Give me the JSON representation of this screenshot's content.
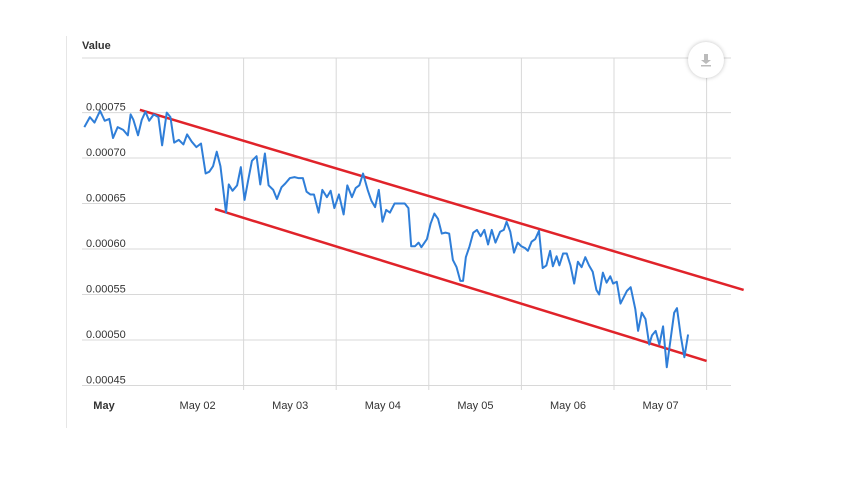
{
  "colors": {
    "series": "#2f7ed8",
    "channel": "#e0232a",
    "grid": "#d8d8d8",
    "axis_text": "#333333"
  },
  "icons": {
    "export": "download-icon"
  },
  "chart_data": {
    "type": "line",
    "ylabel": "Value",
    "ylim": [
      0.000445,
      0.00081
    ],
    "y_ticks": [
      "0.00045",
      "0.00050",
      "0.00055",
      "0.00060",
      "0.00065",
      "0.00070",
      "0.00075"
    ],
    "y_tick_values": [
      0.00045,
      0.0005,
      0.00055,
      0.0006,
      0.00065,
      0.0007,
      0.00075
    ],
    "x_ticks": [
      "May",
      "May 02",
      "May 03",
      "May 04",
      "May 05",
      "May 06",
      "May 07"
    ],
    "x_tick_values": [
      0,
      1,
      2,
      3,
      4,
      5,
      6
    ],
    "xlim": [
      0.0,
      7.0
    ],
    "grid": true,
    "series": [
      {
        "values": [
          [
            0.0,
            0.000734
          ],
          [
            0.06,
            0.000745
          ],
          [
            0.11,
            0.000739
          ],
          [
            0.17,
            0.000752
          ],
          [
            0.22,
            0.000741
          ],
          [
            0.27,
            0.000743
          ],
          [
            0.31,
            0.000722
          ],
          [
            0.36,
            0.000734
          ],
          [
            0.42,
            0.000731
          ],
          [
            0.47,
            0.000725
          ],
          [
            0.5,
            0.000748
          ],
          [
            0.53,
            0.000742
          ],
          [
            0.58,
            0.000725
          ],
          [
            0.62,
            0.000742
          ],
          [
            0.66,
            0.000751
          ],
          [
            0.7,
            0.000741
          ],
          [
            0.75,
            0.000748
          ],
          [
            0.8,
            0.000745
          ],
          [
            0.84,
            0.000714
          ],
          [
            0.89,
            0.00075
          ],
          [
            0.93,
            0.000745
          ],
          [
            0.97,
            0.000717
          ],
          [
            1.02,
            0.00072
          ],
          [
            1.07,
            0.000715
          ],
          [
            1.11,
            0.000726
          ],
          [
            1.16,
            0.000718
          ],
          [
            1.21,
            0.000712
          ],
          [
            1.26,
            0.000716
          ],
          [
            1.31,
            0.000683
          ],
          [
            1.35,
            0.000685
          ],
          [
            1.39,
            0.000691
          ],
          [
            1.43,
            0.000707
          ],
          [
            1.47,
            0.000691
          ],
          [
            1.53,
            0.00064
          ],
          [
            1.56,
            0.000671
          ],
          [
            1.6,
            0.000664
          ],
          [
            1.65,
            0.00067
          ],
          [
            1.69,
            0.00069
          ],
          [
            1.73,
            0.000654
          ],
          [
            1.77,
            0.000676
          ],
          [
            1.81,
            0.000697
          ],
          [
            1.86,
            0.000702
          ],
          [
            1.9,
            0.000671
          ],
          [
            1.95,
            0.000705
          ],
          [
            1.99,
            0.00067
          ],
          [
            2.04,
            0.000665
          ],
          [
            2.08,
            0.000655
          ],
          [
            2.13,
            0.000668
          ],
          [
            2.17,
            0.000672
          ],
          [
            2.22,
            0.000678
          ],
          [
            2.27,
            0.000679
          ],
          [
            2.31,
            0.000678
          ],
          [
            2.36,
            0.000678
          ],
          [
            2.4,
            0.000663
          ],
          [
            2.44,
            0.00066
          ],
          [
            2.48,
            0.00066
          ],
          [
            2.53,
            0.00064
          ],
          [
            2.57,
            0.000665
          ],
          [
            2.62,
            0.000657
          ],
          [
            2.66,
            0.000664
          ],
          [
            2.7,
            0.000645
          ],
          [
            2.75,
            0.00066
          ],
          [
            2.8,
            0.000638
          ],
          [
            2.84,
            0.00067
          ],
          [
            2.89,
            0.000657
          ],
          [
            2.93,
            0.000667
          ],
          [
            2.97,
            0.00067
          ],
          [
            3.01,
            0.000683
          ],
          [
            3.06,
            0.000665
          ],
          [
            3.1,
            0.000653
          ],
          [
            3.14,
            0.000646
          ],
          [
            3.18,
            0.000665
          ],
          [
            3.22,
            0.00063
          ],
          [
            3.26,
            0.000643
          ],
          [
            3.3,
            0.00064
          ],
          [
            3.35,
            0.00065
          ],
          [
            3.4,
            0.00065
          ],
          [
            3.46,
            0.00065
          ],
          [
            3.5,
            0.000645
          ],
          [
            3.53,
            0.000603
          ],
          [
            3.57,
            0.000603
          ],
          [
            3.61,
            0.000607
          ],
          [
            3.64,
            0.000602
          ],
          [
            3.7,
            0.000611
          ],
          [
            3.74,
            0.000628
          ],
          [
            3.78,
            0.000639
          ],
          [
            3.82,
            0.000633
          ],
          [
            3.86,
            0.000617
          ],
          [
            3.9,
            0.000618
          ],
          [
            3.94,
            0.000617
          ],
          [
            3.98,
            0.000588
          ],
          [
            4.02,
            0.00058
          ],
          [
            4.06,
            0.000565
          ],
          [
            4.09,
            0.000565
          ],
          [
            4.12,
            0.000591
          ],
          [
            4.16,
            0.000603
          ],
          [
            4.2,
            0.000618
          ],
          [
            4.24,
            0.000621
          ],
          [
            4.28,
            0.000614
          ],
          [
            4.32,
            0.000621
          ],
          [
            4.36,
            0.000605
          ],
          [
            4.4,
            0.000621
          ],
          [
            4.44,
            0.000607
          ],
          [
            4.49,
            0.000619
          ],
          [
            4.53,
            0.000621
          ],
          [
            4.56,
            0.00063
          ],
          [
            4.6,
            0.000619
          ],
          [
            4.64,
            0.000596
          ],
          [
            4.68,
            0.000607
          ],
          [
            4.72,
            0.000603
          ],
          [
            4.76,
            0.000601
          ],
          [
            4.79,
            0.000598
          ],
          [
            4.83,
            0.000608
          ],
          [
            4.87,
            0.000611
          ],
          [
            4.91,
            0.00062
          ],
          [
            4.95,
            0.000579
          ],
          [
            4.99,
            0.000582
          ],
          [
            5.03,
            0.000598
          ],
          [
            5.06,
            0.000581
          ],
          [
            5.1,
            0.000592
          ],
          [
            5.13,
            0.000582
          ],
          [
            5.17,
            0.000595
          ],
          [
            5.21,
            0.000595
          ],
          [
            5.25,
            0.000582
          ],
          [
            5.29,
            0.000562
          ],
          [
            5.33,
            0.000586
          ],
          [
            5.37,
            0.00058
          ],
          [
            5.41,
            0.000591
          ],
          [
            5.45,
            0.000582
          ],
          [
            5.49,
            0.000575
          ],
          [
            5.53,
            0.000555
          ],
          [
            5.56,
            0.00055
          ],
          [
            5.6,
            0.000574
          ],
          [
            5.64,
            0.000563
          ],
          [
            5.68,
            0.00057
          ],
          [
            5.71,
            0.000562
          ],
          [
            5.75,
            0.000564
          ],
          [
            5.79,
            0.00054
          ],
          [
            5.83,
            0.000548
          ],
          [
            5.86,
            0.000554
          ],
          [
            5.9,
            0.000558
          ],
          [
            5.95,
            0.000534
          ],
          [
            5.98,
            0.00051
          ],
          [
            6.02,
            0.00053
          ],
          [
            6.06,
            0.000523
          ],
          [
            6.1,
            0.000495
          ],
          [
            6.13,
            0.000505
          ],
          [
            6.17,
            0.00051
          ],
          [
            6.21,
            0.000495
          ],
          [
            6.25,
            0.000515
          ],
          [
            6.29,
            0.00047
          ],
          [
            6.33,
            0.0005
          ],
          [
            6.37,
            0.00053
          ],
          [
            6.4,
            0.000535
          ],
          [
            6.44,
            0.000505
          ],
          [
            6.48,
            0.000481
          ],
          [
            6.52,
            0.000506
          ]
        ]
      }
    ],
    "annotations": [
      {
        "type": "trendline",
        "from": [
          0.48,
          0.000753
        ],
        "to": [
          7.0,
          0.000555
        ]
      },
      {
        "type": "trendline",
        "from": [
          1.29,
          0.000644
        ],
        "to": [
          6.6,
          0.000477
        ]
      }
    ]
  }
}
